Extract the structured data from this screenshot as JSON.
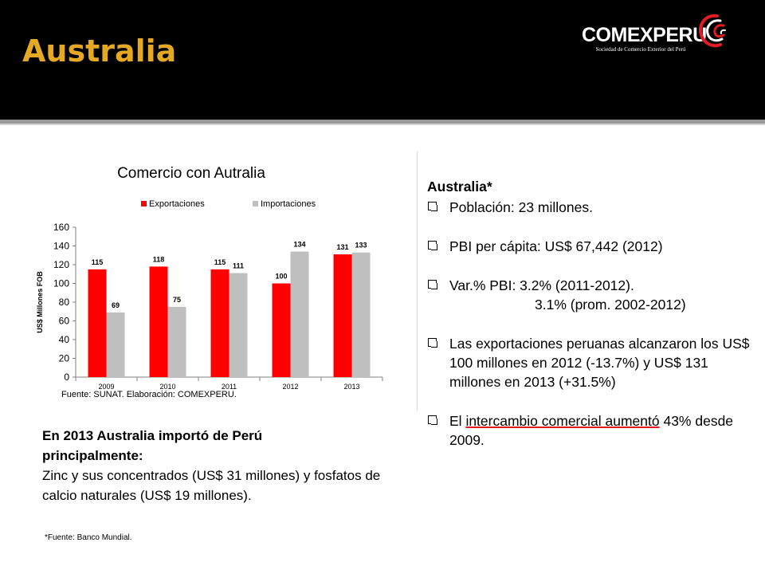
{
  "slide": {
    "title": "Australia"
  },
  "logo": {
    "name": "COMEXPERU",
    "subtitle": "Sociedad de Comercio Exterior del Perú"
  },
  "right_panel": {
    "heading": "Australia*",
    "population": "Población: 23 millones.",
    "gdp_per_capita": "PBI per cápita: US$ 67,442 (2012)",
    "gdp_var_line1": "Var.% PBI: 3.2% (2011-2012).",
    "gdp_var_line2": "3.1% (prom. 2002-2012)",
    "exports_text": "Las exportaciones peruanas alcanzaron los US$ 100 millones en 2012 (-13.7%) y US$ 131 millones en 2013 (+31.5%)",
    "trade_prefix": "El ",
    "trade_highlight": "intercambio comercial aumentó",
    "trade_suffix": " 43% desde 2009."
  },
  "bottom": {
    "bold_line1": "En 2013 Australia importó de Perú",
    "bold_line2": "principalmente:",
    "body": "Zinc y sus concentrados  (US$ 31 millones) y fosfatos de calcio naturales (US$ 19 millones)."
  },
  "footnote": "*Fuente: Banco Mundial.",
  "colors": {
    "title": "#e4a823",
    "exports": "#ff0000",
    "imports": "#bfbfbf"
  },
  "chart_data": {
    "type": "bar",
    "title": "Comercio con Autralia",
    "ylabel": "US$ Millones FOB",
    "xlabel": "",
    "source": "Fuente: SUNAT. Elaboración: COMEXPERU.",
    "categories": [
      "2009",
      "2010",
      "2011",
      "2012",
      "2013"
    ],
    "ylim": [
      0,
      160
    ],
    "yticks": [
      0,
      20,
      40,
      60,
      80,
      100,
      120,
      140,
      160
    ],
    "legend_position": "top",
    "grid": false,
    "series": [
      {
        "name": "Exportaciones",
        "color": "#ff0000",
        "values": [
          115,
          118,
          115,
          100,
          131
        ]
      },
      {
        "name": "Importaciones",
        "color": "#bfbfbf",
        "values": [
          69,
          75,
          111,
          134,
          133
        ]
      }
    ]
  }
}
